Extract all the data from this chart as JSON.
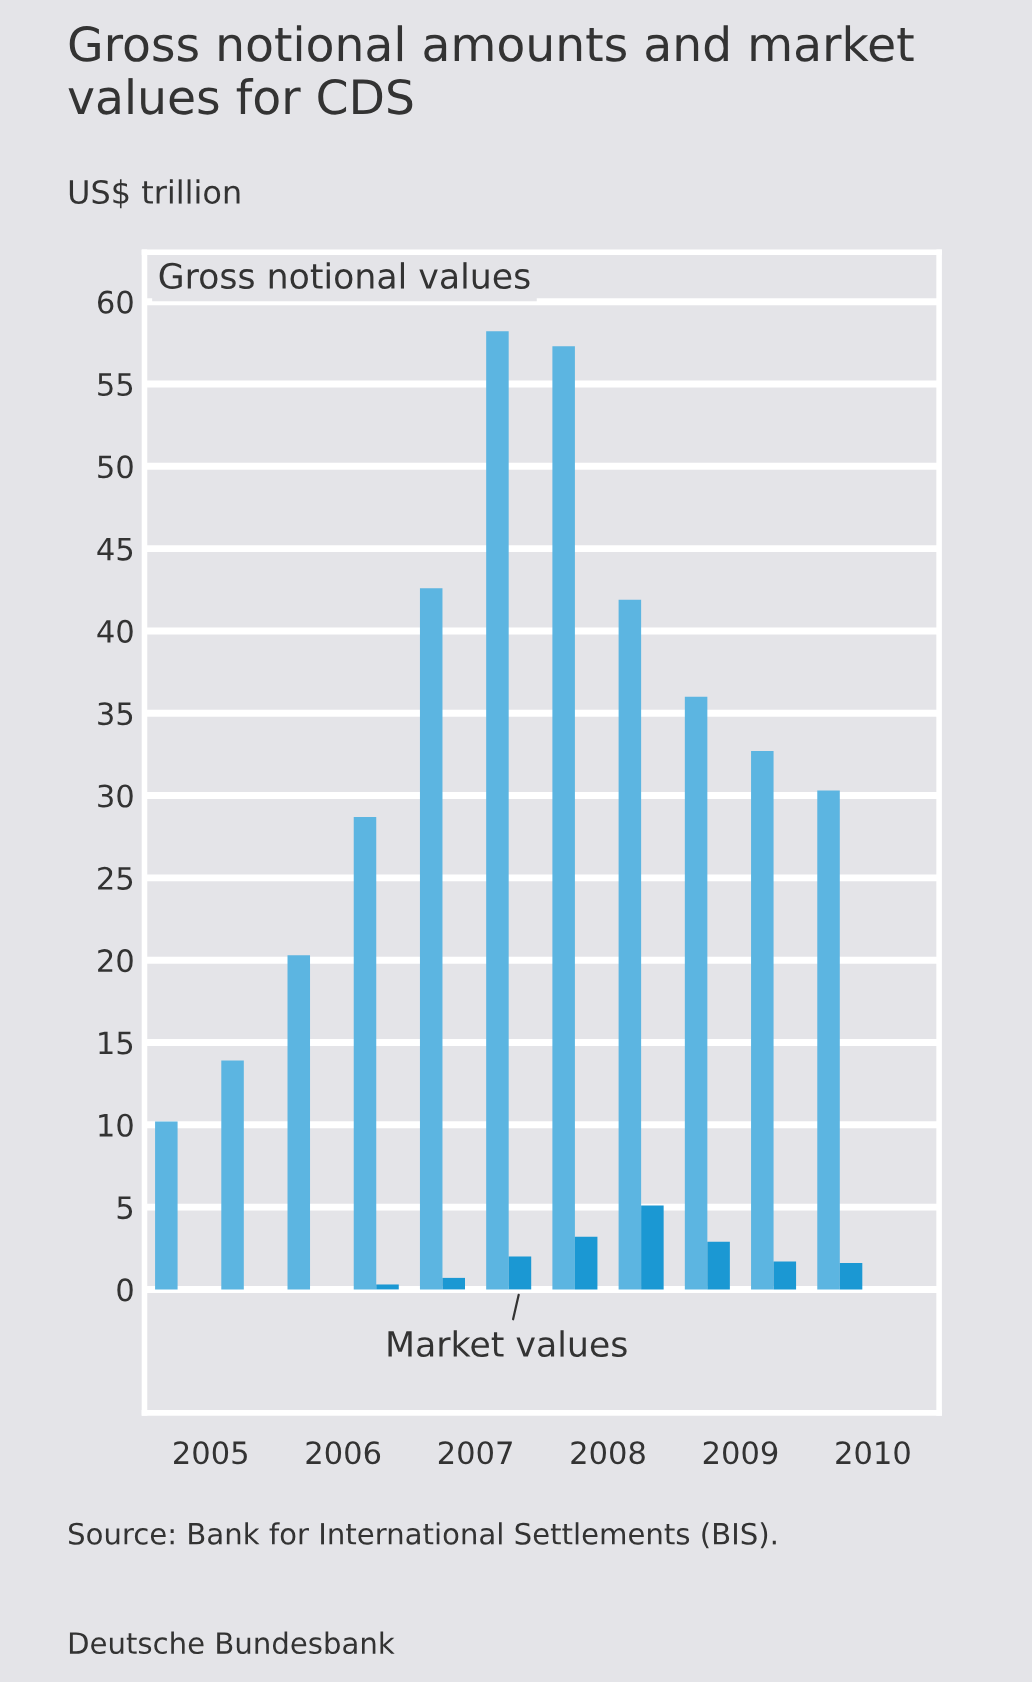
{
  "chart_data": {
    "type": "bar",
    "title": "Gross notional amounts and market values for CDS",
    "ylabel": "US$ trillion",
    "x": [
      2005.25,
      2005.75,
      2006.25,
      2006.75,
      2007.25,
      2007.75,
      2008.25,
      2008.75,
      2009.25,
      2009.75,
      2010.25
    ],
    "series": [
      {
        "name": "Gross notional values",
        "color": "#5cb5e1",
        "values": [
          10.2,
          13.9,
          20.3,
          28.7,
          42.6,
          58.2,
          57.3,
          41.9,
          36.0,
          32.7,
          30.3
        ]
      },
      {
        "name": "Market values",
        "color": "#1b98d3",
        "values": [
          null,
          null,
          null,
          0.3,
          0.7,
          2.0,
          3.2,
          5.1,
          2.9,
          1.7,
          1.6
        ]
      }
    ],
    "ylim": [
      -7.5,
      63
    ],
    "yticks": [
      0,
      5,
      10,
      15,
      20,
      25,
      30,
      35,
      40,
      45,
      50,
      55,
      60
    ],
    "xlim": [
      2005,
      2011
    ],
    "xticks": [
      {
        "value": 2005.5,
        "label": "2005"
      },
      {
        "value": 2006.5,
        "label": "2006"
      },
      {
        "value": 2007.5,
        "label": "2007"
      },
      {
        "value": 2008.5,
        "label": "2008"
      },
      {
        "value": 2009.5,
        "label": "2009"
      },
      {
        "value": 2010.5,
        "label": "2010"
      }
    ],
    "grid": "y",
    "legend": false,
    "annotations": [
      "Source: Bank for International Settlements (BIS).",
      "Deutsche Bundesbank"
    ]
  }
}
